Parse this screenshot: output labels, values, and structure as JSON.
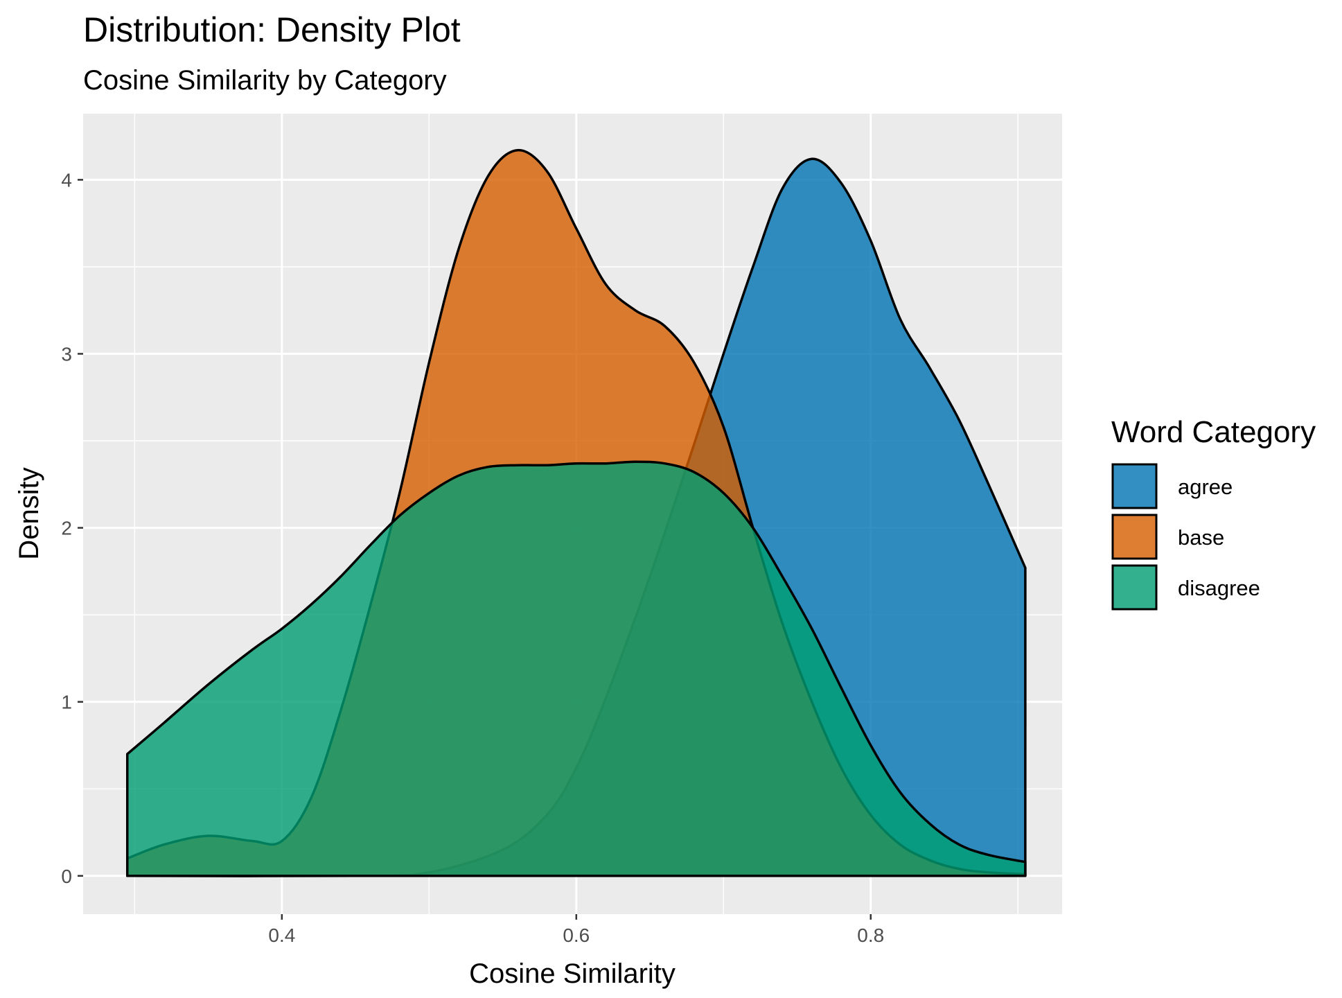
{
  "chart_data": {
    "type": "area",
    "title": "Distribution: Density Plot",
    "subtitle": "Cosine Similarity by Category",
    "xlabel": "Cosine Similarity",
    "ylabel": "Density",
    "xlim": [
      0.265,
      0.93
    ],
    "ylim": [
      -0.22,
      4.38
    ],
    "x_ticks": [
      0.4,
      0.6,
      0.8
    ],
    "x_tick_labels": [
      "0.4",
      "0.6",
      "0.8"
    ],
    "y_ticks": [
      0,
      1,
      2,
      3,
      4
    ],
    "y_tick_labels": [
      "0",
      "1",
      "2",
      "3",
      "4"
    ],
    "grid": true,
    "legend": {
      "title": "Word Category",
      "position": "right"
    },
    "series": [
      {
        "name": "agree",
        "color": "#0072B2",
        "x": [
          0.295,
          0.45,
          0.5,
          0.55,
          0.58,
          0.6,
          0.62,
          0.65,
          0.68,
          0.7,
          0.72,
          0.74,
          0.76,
          0.78,
          0.8,
          0.82,
          0.84,
          0.86,
          0.88,
          0.905
        ],
        "y": [
          0.0,
          0.0,
          0.02,
          0.15,
          0.35,
          0.62,
          1.02,
          1.72,
          2.48,
          3.0,
          3.5,
          3.95,
          4.12,
          3.98,
          3.65,
          3.2,
          2.92,
          2.62,
          2.25,
          1.77
        ]
      },
      {
        "name": "base",
        "color": "#D55E00",
        "x": [
          0.295,
          0.32,
          0.35,
          0.38,
          0.4,
          0.42,
          0.44,
          0.46,
          0.48,
          0.5,
          0.52,
          0.54,
          0.56,
          0.58,
          0.6,
          0.62,
          0.64,
          0.66,
          0.68,
          0.7,
          0.72,
          0.74,
          0.76,
          0.78,
          0.8,
          0.82,
          0.84,
          0.86,
          0.88,
          0.905
        ],
        "y": [
          0.1,
          0.18,
          0.23,
          0.2,
          0.2,
          0.45,
          0.95,
          1.55,
          2.2,
          2.95,
          3.6,
          4.02,
          4.17,
          4.05,
          3.72,
          3.4,
          3.25,
          3.16,
          2.95,
          2.58,
          2.0,
          1.45,
          1.0,
          0.62,
          0.35,
          0.18,
          0.09,
          0.04,
          0.02,
          0.01
        ]
      },
      {
        "name": "disagree",
        "color": "#009E73",
        "x": [
          0.295,
          0.32,
          0.35,
          0.38,
          0.4,
          0.42,
          0.44,
          0.46,
          0.48,
          0.5,
          0.52,
          0.54,
          0.56,
          0.58,
          0.6,
          0.62,
          0.64,
          0.66,
          0.68,
          0.7,
          0.72,
          0.74,
          0.76,
          0.78,
          0.8,
          0.82,
          0.84,
          0.86,
          0.88,
          0.905
        ],
        "y": [
          0.7,
          0.88,
          1.1,
          1.3,
          1.42,
          1.56,
          1.72,
          1.9,
          2.07,
          2.2,
          2.3,
          2.35,
          2.36,
          2.36,
          2.37,
          2.37,
          2.38,
          2.37,
          2.32,
          2.2,
          2.0,
          1.72,
          1.42,
          1.08,
          0.75,
          0.48,
          0.3,
          0.18,
          0.12,
          0.08
        ]
      }
    ]
  }
}
